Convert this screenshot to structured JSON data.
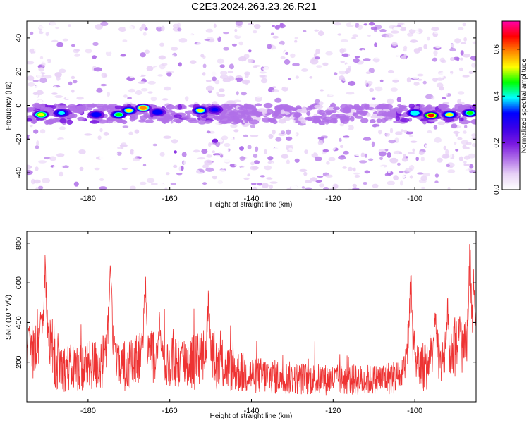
{
  "figure": {
    "title": "C2E3.2024.263.23.26.R21"
  },
  "chart_data": [
    {
      "type": "heatmap",
      "xlabel": "Height of straight line (km)",
      "ylabel": "Frequency (Hz)",
      "xlim": [
        -195,
        -85
      ],
      "ylim": [
        -50,
        50
      ],
      "xticks": [
        -180,
        -160,
        -140,
        -120,
        -100
      ],
      "yticks": [
        -40,
        -20,
        0,
        20,
        40
      ],
      "colorbar": {
        "label": "Normalized spectral amplitude",
        "range": [
          0.0,
          0.72
        ],
        "ticks": [
          "0.0",
          "0.2",
          "0.4",
          "0.6"
        ],
        "colors": [
          "#ffffff",
          "#e8d2f6",
          "#b070e8",
          "#7a18e0",
          "#3a00e8",
          "#0000ff",
          "#00ffff",
          "#00ff00",
          "#ffff00",
          "#ff8800",
          "#ff0000",
          "#ff00aa"
        ]
      },
      "band": {
        "center_hz": -5,
        "half_width_hz": 5
      },
      "hotspots": [
        {
          "x": -191.5,
          "f": -5.5,
          "level": 0.55
        },
        {
          "x": -186.5,
          "f": -4.5,
          "level": 0.4
        },
        {
          "x": -178,
          "f": -5.5,
          "level": 0.35
        },
        {
          "x": -172.5,
          "f": -5.5,
          "level": 0.45
        },
        {
          "x": -170,
          "f": -3,
          "level": 0.5
        },
        {
          "x": -166.5,
          "f": -1.5,
          "level": 0.62
        },
        {
          "x": -163,
          "f": -4,
          "level": 0.35
        },
        {
          "x": -152.5,
          "f": -3,
          "level": 0.5
        },
        {
          "x": -149,
          "f": -2.5,
          "level": 0.3
        },
        {
          "x": -100,
          "f": -4.5,
          "level": 0.42
        },
        {
          "x": -96,
          "f": -6,
          "level": 0.68
        },
        {
          "x": -91.5,
          "f": -5.5,
          "level": 0.5
        },
        {
          "x": -86.5,
          "f": -4.5,
          "level": 0.45
        }
      ]
    },
    {
      "type": "line",
      "xlabel": "Height of straight line (km)",
      "ylabel": "SNR (10 * v/v)",
      "xlim": [
        -195,
        -85
      ],
      "ylim": [
        0,
        860
      ],
      "xticks": [
        -180,
        -160,
        -140,
        -120,
        -100
      ],
      "yticks": [
        200,
        400,
        600,
        800
      ],
      "series": [
        {
          "color": "#ee3333",
          "baseline_envelope": [
            [
              -195,
              230
            ],
            [
              -190,
              330
            ],
            [
              -186,
              200
            ],
            [
              -180,
              210
            ],
            [
              -175,
              240
            ],
            [
              -170,
              210
            ],
            [
              -166,
              260
            ],
            [
              -160,
              230
            ],
            [
              -155,
              240
            ],
            [
              -150,
              260
            ],
            [
              -145,
              190
            ],
            [
              -140,
              160
            ],
            [
              -130,
              140
            ],
            [
              -120,
              130
            ],
            [
              -110,
              130
            ],
            [
              -104,
              150
            ],
            [
              -100,
              190
            ],
            [
              -95,
              250
            ],
            [
              -90,
              300
            ],
            [
              -85,
              340
            ]
          ],
          "peaks": [
            [
              -194.5,
              470
            ],
            [
              -191.5,
              580
            ],
            [
              -190.5,
              800
            ],
            [
              -174.5,
              810
            ],
            [
              -166,
              700
            ],
            [
              -162.5,
              470
            ],
            [
              -150.5,
              600
            ],
            [
              -101,
              720
            ],
            [
              -95,
              520
            ],
            [
              -92,
              560
            ],
            [
              -89,
              500
            ],
            [
              -86.5,
              860
            ],
            [
              -85.5,
              720
            ]
          ]
        }
      ]
    }
  ]
}
